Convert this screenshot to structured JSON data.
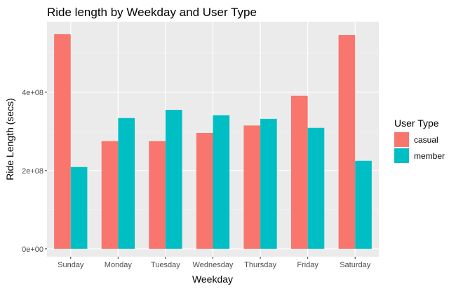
{
  "chart_data": {
    "type": "bar",
    "title": "Ride length by Weekday and User Type",
    "xlabel": "Weekday",
    "ylabel": "Ride Length (secs)",
    "categories": [
      "Sunday",
      "Monday",
      "Tuesday",
      "Wednesday",
      "Thursday",
      "Friday",
      "Saturday"
    ],
    "series": [
      {
        "name": "casual",
        "color": "#F8766D",
        "values": [
          548000000,
          275000000,
          275000000,
          296000000,
          315000000,
          391000000,
          546000000
        ]
      },
      {
        "name": "member",
        "color": "#00BFC4",
        "values": [
          209000000,
          334000000,
          355000000,
          341000000,
          332000000,
          309000000,
          225000000
        ]
      }
    ],
    "ylim": [
      -20000000,
      580000000
    ],
    "yticks": [
      {
        "value": 0,
        "label": "0e+00"
      },
      {
        "value": 200000000,
        "label": "2e+08"
      },
      {
        "value": 400000000,
        "label": "4e+08"
      }
    ],
    "grid": true,
    "legend": {
      "title": "User Type",
      "position": "right"
    }
  }
}
